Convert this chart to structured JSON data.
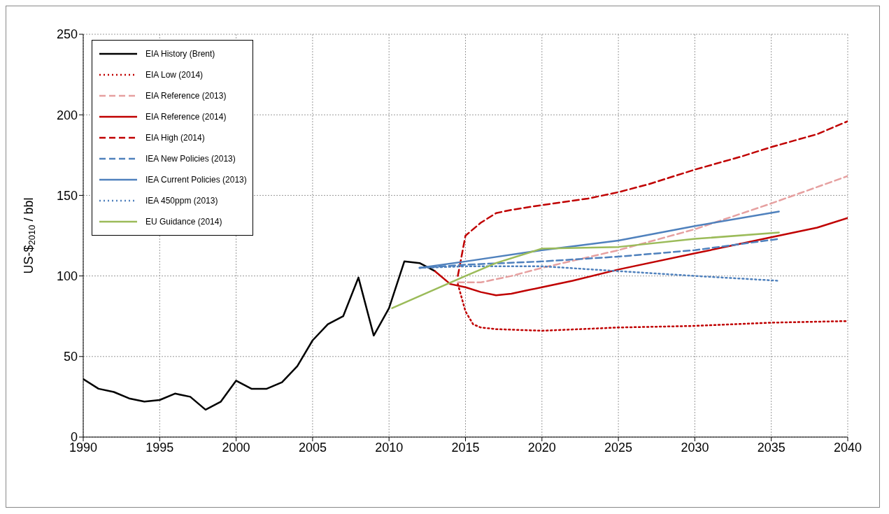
{
  "chart_data": {
    "type": "line",
    "ylabel": "US-$$_{2010}$ / bbl",
    "xlim": [
      1990,
      2040
    ],
    "xticks": [
      1990,
      1995,
      2000,
      2005,
      2010,
      2015,
      2020,
      2025,
      2030,
      2035,
      2040
    ],
    "ylim": [
      0,
      250
    ],
    "yticks": [
      0,
      50,
      100,
      150,
      200,
      250
    ],
    "grid": true,
    "legend": "top left",
    "marker": "none",
    "series": [
      {
        "name": "EIA History (Brent)",
        "color": "#000000",
        "line_style": "solid",
        "x": [
          1990,
          1991,
          1992,
          1993,
          1994,
          1995,
          1996,
          1997,
          1998,
          1999,
          2000,
          2001,
          2002,
          2003,
          2004,
          2005,
          2006,
          2007,
          2008,
          2009,
          2010,
          2011,
          2012,
          2013
        ],
        "values": [
          36,
          30,
          28,
          24,
          22,
          23,
          27,
          25,
          17,
          22,
          35,
          30,
          30,
          34,
          44,
          60,
          70,
          75,
          99,
          63,
          80,
          109,
          108,
          103
        ]
      },
      {
        "name": "EIA Low (2014)",
        "color": "#c00000",
        "line_style": "dotted",
        "x": [
          2014.5,
          2015,
          2015.5,
          2016,
          2017,
          2020,
          2025,
          2030,
          2035,
          2040
        ],
        "values": [
          95,
          78,
          70,
          68,
          67,
          66,
          68,
          69,
          71,
          72
        ]
      },
      {
        "name": "EIA Reference (2013)",
        "color": "#e6a0a0",
        "line_style": "dashed",
        "x": [
          2014.5,
          2016,
          2018,
          2020,
          2025,
          2030,
          2035,
          2040
        ],
        "values": [
          96,
          96,
          100,
          105,
          116,
          129,
          145,
          162
        ]
      },
      {
        "name": "EIA Reference (2014)",
        "color": "#c00000",
        "line_style": "solid",
        "x": [
          2013,
          2014,
          2015,
          2016,
          2017,
          2018,
          2019,
          2020,
          2022,
          2025,
          2030,
          2035,
          2038,
          2040
        ],
        "values": [
          103,
          95,
          93,
          90,
          88,
          89,
          91,
          93,
          97,
          104,
          114,
          124,
          130,
          136
        ]
      },
      {
        "name": "EIA High (2014)",
        "color": "#c00000",
        "line_style": "dashed",
        "x": [
          2014.5,
          2015,
          2016,
          2017,
          2018,
          2020,
          2023,
          2025,
          2027,
          2030,
          2033,
          2035,
          2038,
          2040
        ],
        "values": [
          100,
          125,
          133,
          139,
          141,
          144,
          148,
          152,
          157,
          166,
          174,
          180,
          188,
          196
        ]
      },
      {
        "name": "IEA New Policies (2013)",
        "color": "#4f81bd",
        "line_style": "dashed",
        "x": [
          2012,
          2015,
          2020,
          2025,
          2030,
          2035.5
        ],
        "values": [
          105,
          107,
          109,
          112,
          116,
          123
        ]
      },
      {
        "name": "IEA Current Policies (2013)",
        "color": "#4f81bd",
        "line_style": "solid",
        "x": [
          2012,
          2015,
          2020,
          2025,
          2030,
          2035.5
        ],
        "values": [
          105,
          109,
          116,
          122,
          131,
          140
        ]
      },
      {
        "name": "IEA 450ppm (2013)",
        "color": "#4f81bd",
        "line_style": "dotted",
        "x": [
          2012,
          2015,
          2020,
          2025,
          2030,
          2035.5
        ],
        "values": [
          105,
          106,
          106,
          103,
          100,
          97
        ]
      },
      {
        "name": "EU Guidance (2014)",
        "color": "#9bbb59",
        "line_style": "solid",
        "x": [
          2010.2,
          2015,
          2017,
          2020,
          2025,
          2030,
          2035.5
        ],
        "values": [
          80,
          100,
          108,
          117,
          118,
          123,
          127
        ]
      }
    ]
  }
}
